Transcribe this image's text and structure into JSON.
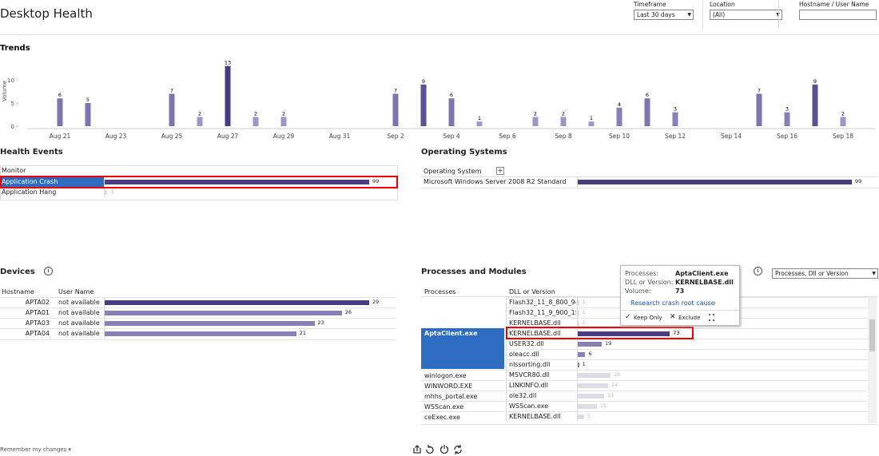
{
  "header": {
    "title": "Desktop Health",
    "filters": [
      {
        "label": "Timeframe",
        "value": "Last 30 days"
      },
      {
        "label": "Location",
        "value": "(All)"
      },
      {
        "label": "Hostname / User Name"
      }
    ]
  },
  "chart_data": {
    "type": "bar",
    "title": "Trends",
    "y_label": "Volume",
    "categories": [
      null,
      "Aug 21",
      null,
      "Aug 23",
      null,
      "Aug 25",
      null,
      "Aug 27",
      null,
      "Aug 29",
      null,
      "Aug 31",
      null,
      "Sep 2",
      null,
      "Sep 4",
      null,
      "Sep 6",
      null,
      "Sep 8",
      null,
      "Sep 10",
      null,
      "Sep 12",
      null,
      "Sep 14",
      null,
      "Sep 16",
      null,
      "Sep 18",
      null
    ],
    "values": [
      null,
      6,
      5,
      null,
      null,
      7,
      2,
      13,
      2,
      2,
      null,
      null,
      null,
      7,
      9,
      6,
      1,
      null,
      2,
      2,
      1,
      4,
      6,
      3,
      null,
      null,
      7,
      3,
      9,
      2,
      null
    ],
    "colors": [
      null,
      "#7f74b0",
      "#7f74b0",
      null,
      null,
      "#7f74b0",
      "#9e95c8",
      "#4a3c82",
      "#9e95c8",
      "#9e95c8",
      null,
      null,
      null,
      "#7f74b0",
      "#5c4f95",
      "#7f74b0",
      "#9e95c8",
      null,
      "#9e95c8",
      "#9e95c8",
      "#9e95c8",
      "#8a80b9",
      "#7f74b0",
      "#8a80b9",
      null,
      null,
      "#7f74b0",
      "#8a80b9",
      "#5c4f95",
      "#9e95c8",
      null
    ],
    "ylim": [
      0,
      15
    ],
    "yticks": [
      0,
      5,
      10
    ]
  },
  "health_events": {
    "title": "Health Events",
    "column": "Monitor",
    "selected": 0,
    "rows": [
      {
        "label": "Application Crash",
        "value": 99
      },
      {
        "label": "Application Hang",
        "value": 1
      }
    ]
  },
  "operating_systems": {
    "title": "Operating Systems",
    "column": "Operating System",
    "rows": [
      {
        "label": "Microsoft Windows Server 2008 R2 Standard",
        "value": 99
      }
    ]
  },
  "devices": {
    "title": "Devices",
    "columns": [
      "Hostname",
      "User Name"
    ],
    "rows": [
      {
        "host": "APTA02",
        "user": "not available",
        "value": 29
      },
      {
        "host": "APTA01",
        "user": "not available",
        "value": 26
      },
      {
        "host": "APTA03",
        "user": "not available",
        "value": 23
      },
      {
        "host": "APTA04",
        "user": "not available",
        "value": 21
      }
    ]
  },
  "processes": {
    "title": "Processes and Modules",
    "view": "Processes, Dll or Version",
    "columns": [
      "Processes",
      "DLL or Version"
    ],
    "selected": 1,
    "groups": [
      {
        "modules": [
          {
            "name": "Flash32_11_8_800_94...",
            "value": 1
          },
          {
            "name": "Flash32_11_9_900_15...",
            "value": 1
          },
          {
            "name": "KERNELBASE.dll",
            "value": 1
          }
        ]
      },
      {
        "name": "AptaClient.exe",
        "modules": [
          {
            "name": "KERNELBASE.dll",
            "value": 73
          },
          {
            "name": "USER32.dll",
            "value": 19
          },
          {
            "name": "oleacc.dll",
            "value": 6
          },
          {
            "name": "nlssorting.dll",
            "value": 1
          }
        ]
      },
      {
        "name": "winlogon.exe",
        "modules": [
          {
            "name": "MSVCR80.dll",
            "value": 26
          }
        ]
      },
      {
        "name": "WINWORD.EXE",
        "modules": [
          {
            "name": "LINKINFO.dll",
            "value": 24
          }
        ]
      },
      {
        "name": "mhhs_portal.exe",
        "modules": [
          {
            "name": "ole32.dll",
            "value": 21
          }
        ]
      },
      {
        "name": "WSScan.exe",
        "modules": [
          {
            "name": "WSScan.exe",
            "value": 15
          }
        ]
      },
      {
        "name": "ceExec.exe",
        "modules": [
          {
            "name": "KERNELBASE.dll",
            "value": 5
          }
        ]
      }
    ]
  },
  "tooltip": {
    "rows": [
      {
        "label": "Processes:",
        "value": "AptaClient.exe"
      },
      {
        "label": "DLL or Version:",
        "value": "KERNELBASE.dll"
      },
      {
        "label": "Volume:",
        "value": "73"
      }
    ],
    "link": "Research crash root cause",
    "actions": [
      "Keep Only",
      "Exclude"
    ]
  },
  "footer": {
    "remember": "Remember my changes"
  }
}
